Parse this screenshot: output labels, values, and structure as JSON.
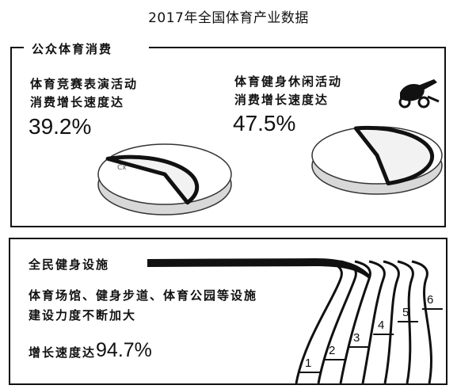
{
  "title": "2017年全国体育产业数据",
  "panels": {
    "consumption": {
      "heading": "公众体育消费",
      "items": [
        {
          "line1": "体育竞赛表演活动",
          "line2": "消费增长速度达",
          "value": "39.2%"
        },
        {
          "line1": "体育健身休闲活动",
          "line2": "消费增长速度达",
          "value": "47.5%"
        }
      ]
    },
    "facilities": {
      "heading": "全民健身设施",
      "description_line1": "体育场馆、健身步道、体育公园等设施",
      "description_line2": "建设力度不断加大",
      "growth_prefix": "增长速度达",
      "growth_value": "94.7%",
      "lane_numbers": [
        "1",
        "2",
        "3",
        "4",
        "5",
        "6"
      ]
    }
  },
  "chart_data": [
    {
      "type": "pie",
      "title": "",
      "slices": [
        {
          "label": "",
          "value": 39.2
        }
      ],
      "unit": "%"
    },
    {
      "type": "pie",
      "title": "",
      "slices": [
        {
          "label": "",
          "value": 47.5
        }
      ],
      "unit": "%"
    },
    {
      "type": "track",
      "value": 94.7,
      "unit": "%"
    }
  ],
  "colors": {
    "ink": "#111111",
    "paper": "#ffffff",
    "sector_fill": "#f2f2f2"
  }
}
